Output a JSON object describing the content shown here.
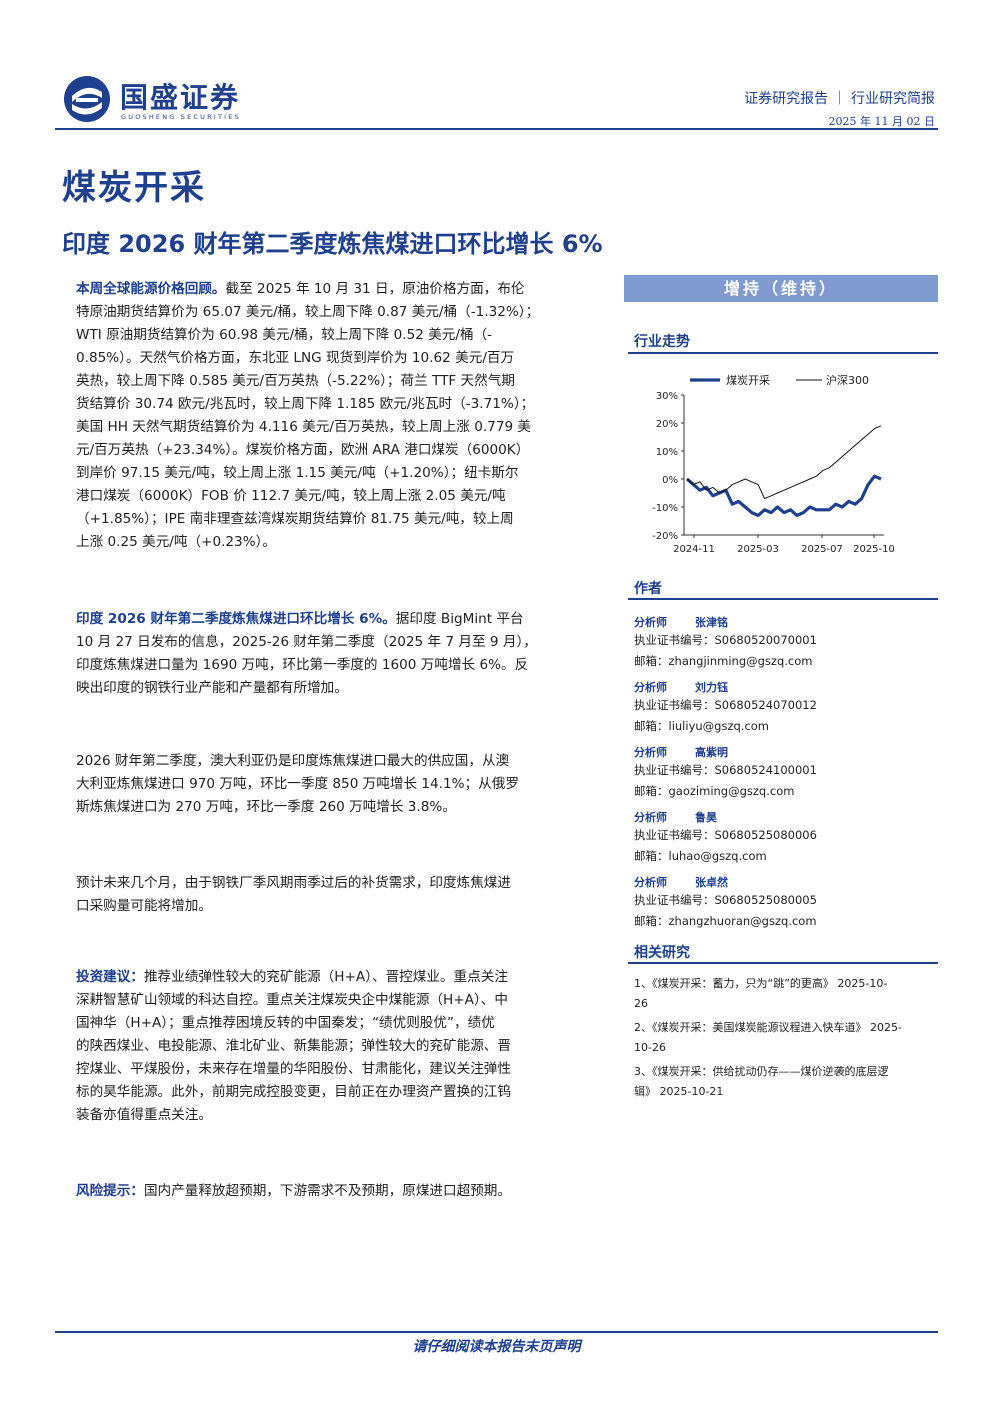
{
  "header": {
    "company_name": "国盛证券",
    "company_name_en": "GUOSHENG SECURITIES",
    "report_type": "证券研究报告 ｜ 行业研究简报",
    "date": "2025 年 11 月 02 日"
  },
  "sector": "煤炭开采",
  "title": "印度 2026 财年第二季度炼焦煤进口环比增长 6%",
  "body": {
    "p1_lead": "本周全球能源价格回顾。",
    "p1_lines": [
      "截至 2025 年 10 月 31 日，原油价格方面，布伦",
      "特原油期货结算价为 65.07 美元/桶，较上周下降 0.87 美元/桶（-1.32%）；",
      "WTI 原油期货结算价为 60.98 美元/桶，较上周下降 0.52 美元/桶（-",
      "0.85%）。天然气价格方面，东北亚 LNG 现货到岸价为 10.62 美元/百万",
      "英热，较上周下降 0.585 美元/百万英热（-5.22%）；荷兰 TTF 天然气期",
      "货结算价 30.74 欧元/兆瓦时，较上周下降 1.185 欧元/兆瓦时（-3.71%）；",
      "美国 HH 天然气期货结算价为 4.116 美元/百万英热，较上周上涨 0.779 美",
      "元/百万英热（+23.34%）。煤炭价格方面，欧洲 ARA 港口煤炭（6000K）",
      "到岸价 97.15 美元/吨，较上周上涨 1.15 美元/吨（+1.20%）；纽卡斯尔",
      "港口煤炭（6000K）FOB 价 112.7 美元/吨，较上周上涨 2.05 美元/吨",
      "（+1.85%）；IPE 南非理查兹湾煤炭期货结算价 81.75 美元/吨，较上周",
      "上涨 0.25 美元/吨（+0.23%）。"
    ],
    "p2_lead": "印度 2026 财年第二季度炼焦煤进口环比增长 6%。",
    "p2_lines": [
      "据印度 BigMint 平台",
      "10 月 27 日发布的信息，2025-26 财年第二季度（2025 年 7 月至 9 月），",
      "印度炼焦煤进口量为 1690 万吨，环比第一季度的 1600 万吨增长 6%。反",
      "映出印度的钢铁行业产能和产量都有所增加。"
    ],
    "p3_lines": [
      "2026 财年第二季度，澳大利亚仍是印度炼焦煤进口最大的供应国，从澳",
      "大利亚炼焦煤进口 970 万吨，环比一季度 850 万吨增长 14.1%；从俄罗",
      "斯炼焦煤进口为 270 万吨，环比一季度 260 万吨增长 3.8%。"
    ],
    "p4_lines": [
      "预计未来几个月，由于钢铁厂季风期雨季过后的补货需求，印度炼焦煤进",
      "口采购量可能将增加。"
    ],
    "p5_lead": "投资建议：",
    "p5_lines": [
      "推荐业绩弹性较大的兖矿能源（H+A）、晋控煤业。重点关注",
      "深耕智慧矿山领域的科达自控。重点关注煤炭央企中煤能源（H+A）、中",
      "国神华（H+A）；重点推荐困境反转的中国秦发；“绩优则股优”，绩优",
      "的陕西煤业、电投能源、淮北矿业、新集能源；弹性较大的兖矿能源、晋",
      "控煤业、平煤股份，未来存在增量的华阳股份、甘肃能化，建议关注弹性",
      "标的昊华能源。此外，前期完成控股变更，目前正在办理资产置换的江钨",
      "装备亦值得重点关注。"
    ],
    "p6_lead": "风险提示：",
    "p6_text": "国内产量释放超预期，下游需求不及预期，原煤进口超预期。"
  },
  "sidebar": {
    "rating": "增持（维持）",
    "trend_heading": "行业走势",
    "authors_heading": "作者",
    "related_heading": "相关研究",
    "analyst_label": "分析师",
    "cert_label": "执业证书编号：",
    "email_label": "邮箱：",
    "authors": [
      {
        "name": "张津铭",
        "cert": "S0680520070001",
        "email": "zhangjinming@gszq.com"
      },
      {
        "name": "刘力钰",
        "cert": "S0680524070012",
        "email": "liuliyu@gszq.com"
      },
      {
        "name": "高紫明",
        "cert": "S0680524100001",
        "email": "gaoziming@gszq.com"
      },
      {
        "name": "鲁昊",
        "cert": "S0680525080006",
        "email": "luhao@gszq.com"
      },
      {
        "name": "张卓然",
        "cert": "S0680525080005",
        "email": "zhangzhuoran@gszq.com"
      }
    ],
    "related": [
      [
        "1、《煤炭开采：蓄力，只为“跳”的更高》 2025-10-",
        "26"
      ],
      [
        "2、《煤炭开采：美国煤炭能源议程进入快车道》 2025-",
        "10-26"
      ],
      [
        "3、《煤炭开采：供给扰动仍存——煤价逆袭的底层逻",
        "辑》 2025-10-21"
      ]
    ]
  },
  "chart_data": {
    "type": "line",
    "x_ticks": [
      "2024-11",
      "2025-03",
      "2025-07",
      "2025-10"
    ],
    "y_ticks": [
      "30%",
      "20%",
      "10%",
      "0%",
      "-10%",
      "-20%"
    ],
    "ylim": [
      -20,
      30
    ],
    "colors": {
      "coal": "#1f3f8f",
      "hs300": "#111111"
    },
    "series": [
      {
        "name": "煤炭开采",
        "values": [
          0,
          -2,
          -4,
          -3,
          -6,
          -5,
          -4,
          -9,
          -8,
          -10,
          -12,
          -13,
          -11,
          -12,
          -10,
          -12,
          -11,
          -13,
          -12,
          -10,
          -11,
          -11,
          -11,
          -9,
          -10,
          -8,
          -9,
          -7,
          -2,
          1,
          0
        ]
      },
      {
        "name": "沪深300",
        "values": [
          0,
          -2,
          -1,
          -4,
          -3,
          -5,
          -4,
          -2,
          -1,
          0,
          -1,
          -2,
          -7,
          -6,
          -5,
          -4,
          -3,
          -2,
          -1,
          0,
          1,
          3,
          4,
          6,
          8,
          10,
          12,
          14,
          16,
          18,
          19
        ]
      }
    ]
  },
  "footer": "请仔细阅读本报告末页声明"
}
